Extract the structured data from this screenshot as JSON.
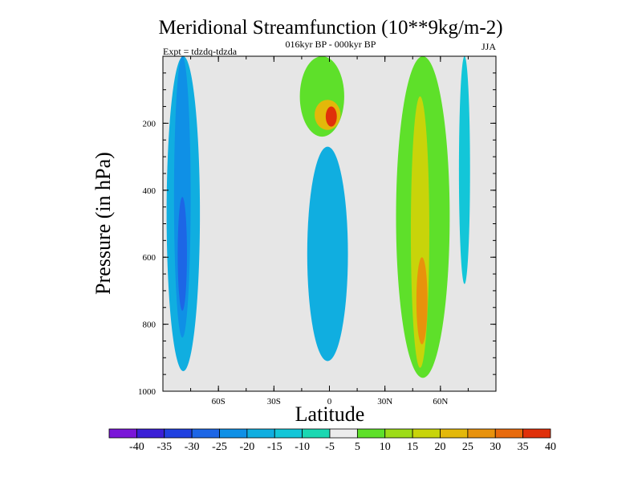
{
  "chart_data": {
    "type": "contour",
    "title": "Meridional Streamfunction (10**9kg/m-2)",
    "subtitle": "016kyr BP - 000kyr BP",
    "left_label": "Expt = tdzdq-tdzda",
    "season": "JJA",
    "xlabel": "Latitude",
    "ylabel": "Pressure (in hPa)",
    "xlim": [
      -90,
      90
    ],
    "ylim": [
      1000,
      0
    ],
    "x_ticks": [
      {
        "value": -60,
        "label": "60S"
      },
      {
        "value": -30,
        "label": "30S"
      },
      {
        "value": 0,
        "label": "0"
      },
      {
        "value": 30,
        "label": "30N"
      },
      {
        "value": 60,
        "label": "60N"
      }
    ],
    "y_ticks": [
      {
        "value": 200,
        "label": "200"
      },
      {
        "value": 400,
        "label": "400"
      },
      {
        "value": 600,
        "label": "600"
      },
      {
        "value": 800,
        "label": "800"
      },
      {
        "value": 1000,
        "label": "1000"
      }
    ],
    "colorbar": {
      "labels": [
        "-40",
        "-35",
        "-30",
        "-25",
        "-20",
        "-15",
        "-10",
        "-5",
        "5",
        "10",
        "15",
        "20",
        "25",
        "30",
        "35",
        "40"
      ],
      "colors": [
        "#7a16d8",
        "#3a1fd6",
        "#2040e0",
        "#1d66e6",
        "#0f90e6",
        "#10aee0",
        "#13c6d8",
        "#1ad8b2",
        "#ececec",
        "#5ee02a",
        "#9ddc18",
        "#c8d40a",
        "#e3b80a",
        "#e8920c",
        "#e86a0c",
        "#e0300a"
      ]
    },
    "features": [
      {
        "name": "sh-polar-cell",
        "lat": [
          -88,
          -70
        ],
        "p": [
          0,
          940
        ],
        "value": -15
      },
      {
        "name": "sh-polar-cell-core",
        "lat": [
          -84,
          -75
        ],
        "p": [
          0,
          840
        ],
        "value": -20
      },
      {
        "name": "sh-polar-cell-max",
        "lat": [
          -82,
          -77
        ],
        "p": [
          420,
          760
        ],
        "value": -25
      },
      {
        "name": "equatorial-upper-cell",
        "lat": [
          -16,
          8
        ],
        "p": [
          0,
          240
        ],
        "value": 5
      },
      {
        "name": "equatorial-upper-core",
        "lat": [
          -8,
          6
        ],
        "p": [
          130,
          220
        ],
        "value": 20
      },
      {
        "name": "equatorial-upper-max",
        "lat": [
          -2,
          4
        ],
        "p": [
          150,
          210
        ],
        "value": 35
      },
      {
        "name": "equatorial-lower-cell",
        "lat": [
          -12,
          10
        ],
        "p": [
          270,
          910
        ],
        "value": -15
      },
      {
        "name": "nh-ferrel-cell",
        "lat": [
          36,
          65
        ],
        "p": [
          0,
          960
        ],
        "value": 5
      },
      {
        "name": "nh-ferrel-core",
        "lat": [
          44,
          54
        ],
        "p": [
          120,
          930
        ],
        "value": 15
      },
      {
        "name": "nh-ferrel-max",
        "lat": [
          47,
          53
        ],
        "p": [
          600,
          860
        ],
        "value": 25
      },
      {
        "name": "nh-polar-filament",
        "lat": [
          70,
          76
        ],
        "p": [
          0,
          680
        ],
        "value": -10
      }
    ]
  }
}
